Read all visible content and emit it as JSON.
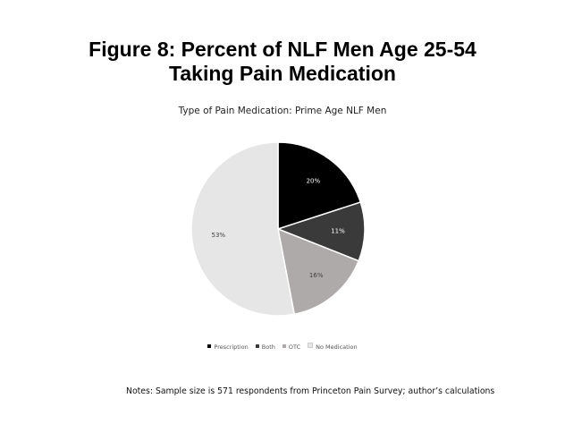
{
  "figure": {
    "title_line_1": "Figure 8: Percent of NLF Men Age 25-54",
    "title_line_2": "Taking Pain Medication",
    "notes": "Notes: Sample size is 571 respondents from Princeton Pain Survey; author’s calculations"
  },
  "chart_data": {
    "type": "pie",
    "title": "Type of Pain Medication: Prime Age NLF Men",
    "categories": [
      "Prescription",
      "Both",
      "OTC",
      "No Medication"
    ],
    "values": [
      20,
      11,
      16,
      53
    ],
    "labels": [
      "20%",
      "11%",
      "16%",
      "53%"
    ],
    "colors": [
      "#000000",
      "#3a3a3a",
      "#aeaaaa",
      "#e6e6e6"
    ],
    "label_colors": [
      "#ffffff",
      "#ffffff",
      "#404040",
      "#404040"
    ],
    "legend_position": "bottom",
    "start_angle": "12 o'clock",
    "direction": "clockwise"
  }
}
